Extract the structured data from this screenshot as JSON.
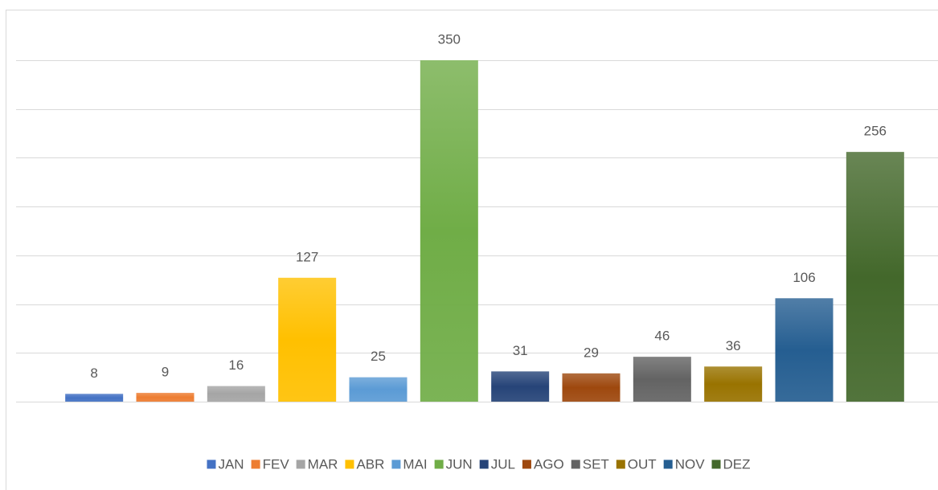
{
  "chart_data": {
    "type": "bar",
    "categories": [
      "JAN",
      "FEV",
      "MAR",
      "ABR",
      "MAI",
      "JUN",
      "JUL",
      "AGO",
      "SET",
      "OUT",
      "NOV",
      "DEZ"
    ],
    "values": [
      8,
      9,
      16,
      127,
      25,
      350,
      31,
      29,
      46,
      36,
      106,
      256
    ],
    "colors": [
      "#4472c4",
      "#ed7d31",
      "#a5a5a5",
      "#ffc000",
      "#5b9bd5",
      "#70ad47",
      "#264478",
      "#9e480e",
      "#636363",
      "#997300",
      "#255e91",
      "#43682b"
    ],
    "ylim": [
      0,
      350
    ],
    "yticks": [
      0,
      50,
      100,
      150,
      200,
      250,
      300,
      350
    ],
    "grid": true,
    "legend": "bottom"
  }
}
